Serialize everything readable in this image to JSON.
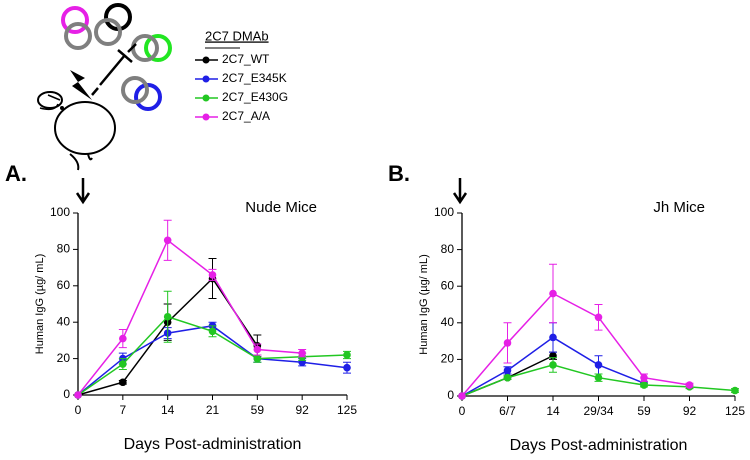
{
  "chart_data": [
    {
      "type": "line",
      "panel": "A.",
      "title": "Nude Mice",
      "ylabel": "Human IgG (µg/ mL)",
      "xlabel": "Days Post-administration",
      "legend_title": "2C7 DMAb",
      "categories": [
        "0",
        "7",
        "14",
        "21",
        "59",
        "92",
        "125"
      ],
      "ylim": [
        0,
        100
      ],
      "yticks": [
        0,
        20,
        40,
        60,
        80,
        100
      ],
      "series": [
        {
          "name": "2C7_WT",
          "color": "#000000",
          "values": [
            0,
            7,
            40,
            64,
            27,
            null,
            null
          ],
          "errors": [
            0,
            1,
            10,
            11,
            6,
            null,
            null
          ]
        },
        {
          "name": "2C7_E345K",
          "color": "#1f1fe6",
          "values": [
            0,
            20,
            34,
            38,
            20,
            18,
            15
          ],
          "errors": [
            0,
            3,
            3,
            2,
            2,
            2,
            3
          ]
        },
        {
          "name": "2C7_E430G",
          "color": "#22c722",
          "values": [
            0,
            17,
            43,
            35,
            20,
            21,
            22
          ],
          "errors": [
            0,
            3,
            14,
            3,
            2,
            2,
            2
          ]
        },
        {
          "name": "2C7_A/A",
          "color": "#e620e6",
          "values": [
            0,
            31,
            85,
            66,
            25,
            23,
            null
          ],
          "errors": [
            0,
            5,
            11,
            3,
            3,
            2,
            null
          ]
        }
      ]
    },
    {
      "type": "line",
      "panel": "B.",
      "title": "Jh Mice",
      "ylabel": "Human IgG (µg/ mL)",
      "xlabel": "Days Post-administration",
      "categories": [
        "0",
        "6/7",
        "14",
        "29/34",
        "59",
        "92",
        "125"
      ],
      "ylim": [
        0,
        100
      ],
      "yticks": [
        0,
        20,
        40,
        60,
        80,
        100
      ],
      "series": [
        {
          "name": "2C7_WT",
          "color": "#000000",
          "values": [
            0,
            10,
            22,
            null,
            null,
            null,
            null
          ],
          "errors": [
            0,
            1,
            2,
            null,
            null,
            null,
            null
          ]
        },
        {
          "name": "2C7_E345K",
          "color": "#1f1fe6",
          "values": [
            0,
            14,
            32,
            17,
            7,
            null,
            null
          ],
          "errors": [
            0,
            2,
            8,
            5,
            1,
            null,
            null
          ]
        },
        {
          "name": "2C7_E430G",
          "color": "#22c722",
          "values": [
            0,
            10,
            17,
            10,
            6,
            5,
            3
          ],
          "errors": [
            0,
            1,
            4,
            2,
            1,
            1,
            1
          ]
        },
        {
          "name": "2C7_A/A",
          "color": "#e620e6",
          "values": [
            0,
            29,
            56,
            43,
            10,
            6,
            null
          ],
          "errors": [
            0,
            11,
            16,
            7,
            2,
            1,
            null
          ]
        }
      ]
    }
  ]
}
